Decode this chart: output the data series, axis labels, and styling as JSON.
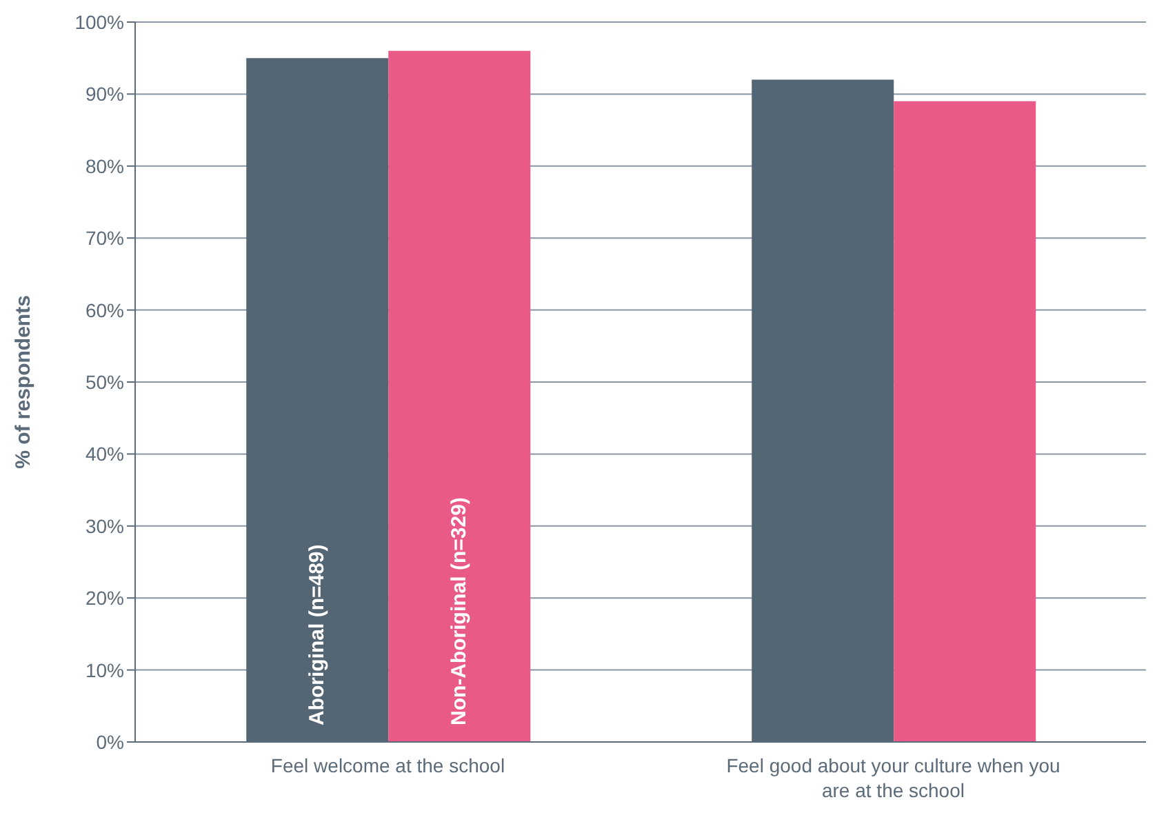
{
  "chart_data": {
    "type": "bar",
    "ylabel": "% of respondents",
    "categories": [
      "Feel welcome at the school",
      "Feel good about your culture when you are at the school"
    ],
    "series": [
      {
        "name": "Aboriginal (n=489)",
        "color": "#546574",
        "values": [
          95,
          92
        ]
      },
      {
        "name": "Non-Aboriginal (n=329)",
        "color": "#e95a87",
        "values": [
          96,
          89
        ]
      }
    ],
    "ylim": [
      0,
      100
    ],
    "yticks": [
      {
        "value": 0,
        "label": "0%"
      },
      {
        "value": 10,
        "label": "10%"
      },
      {
        "value": 20,
        "label": "20%"
      },
      {
        "value": 30,
        "label": "30%"
      },
      {
        "value": 40,
        "label": "40%"
      },
      {
        "value": 50,
        "label": "50%"
      },
      {
        "value": 60,
        "label": "60%"
      },
      {
        "value": 70,
        "label": "70%"
      },
      {
        "value": 80,
        "label": "80%"
      },
      {
        "value": 90,
        "label": "90%"
      },
      {
        "value": 100,
        "label": "100%"
      }
    ],
    "grid": "y"
  }
}
